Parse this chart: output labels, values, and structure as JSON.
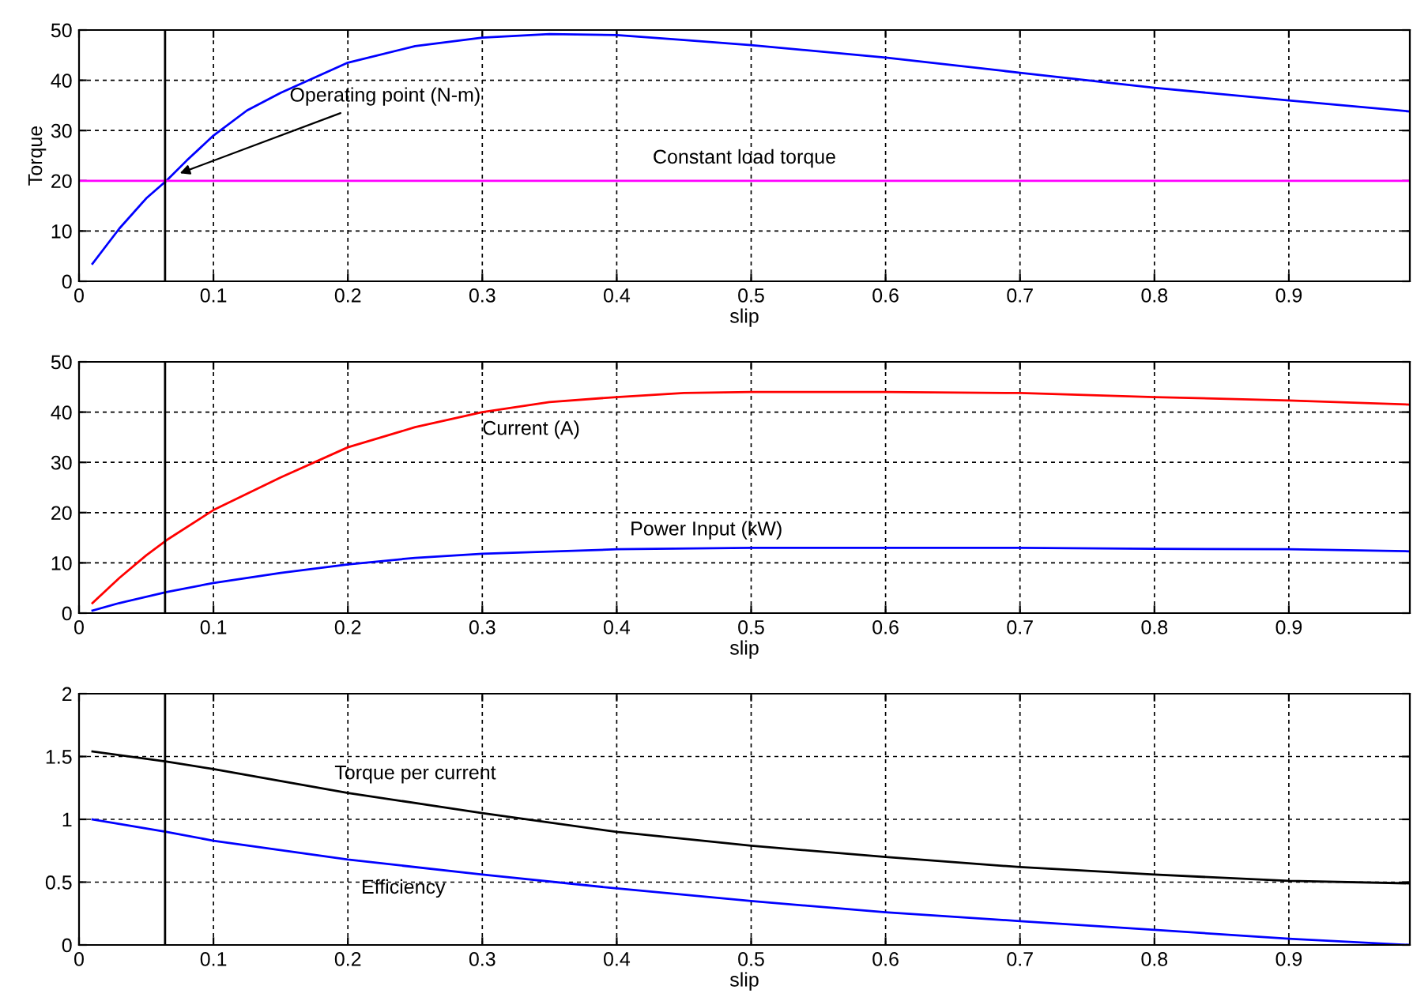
{
  "chart_data": [
    {
      "type": "line",
      "ylabel": "Torque",
      "xlabel": "slip",
      "xlim": [
        0,
        0.99
      ],
      "ylim": [
        0,
        50
      ],
      "xticks": [
        0,
        0.1,
        0.2,
        0.3,
        0.4,
        0.5,
        0.6,
        0.7,
        0.8,
        0.9
      ],
      "yticks": [
        0,
        10,
        20,
        30,
        40,
        50
      ],
      "grid": true,
      "line_style": "solid",
      "marker": "none",
      "series": [
        {
          "color": "#0000ff",
          "x": [
            0.01,
            0.02,
            0.03,
            0.05,
            0.065,
            0.08,
            0.1,
            0.125,
            0.15,
            0.2,
            0.25,
            0.3,
            0.35,
            0.4,
            0.45,
            0.5,
            0.6,
            0.7,
            0.8,
            0.9,
            0.99
          ],
          "values": [
            3.5,
            7,
            10.5,
            16.5,
            20,
            24,
            29,
            34,
            37.5,
            43.5,
            46.8,
            48.5,
            49.2,
            49,
            48,
            47,
            44.5,
            41.5,
            38.5,
            36,
            33.8
          ]
        }
      ],
      "ref_lines": [
        {
          "axis": "y",
          "value": 20,
          "label": "Constant load torque",
          "color": "#ff00ff"
        },
        {
          "axis": "x",
          "value": 0.064,
          "color": "#000000"
        }
      ],
      "annotations": [
        {
          "text": "Operating point (N-m)",
          "x": 0.075,
          "y": 21.5
        }
      ]
    },
    {
      "type": "line",
      "xlabel": "slip",
      "xlim": [
        0,
        0.99
      ],
      "ylim": [
        0,
        50
      ],
      "xticks": [
        0,
        0.1,
        0.2,
        0.3,
        0.4,
        0.5,
        0.6,
        0.7,
        0.8,
        0.9
      ],
      "yticks": [
        0,
        10,
        20,
        30,
        40,
        50
      ],
      "grid": true,
      "line_style": "solid",
      "marker": "none",
      "series": [
        {
          "color": "#ff0000",
          "x": [
            0.01,
            0.03,
            0.05,
            0.065,
            0.1,
            0.15,
            0.2,
            0.25,
            0.3,
            0.35,
            0.4,
            0.45,
            0.5,
            0.6,
            0.7,
            0.8,
            0.9,
            0.99
          ],
          "values": [
            2,
            7,
            11.5,
            14.5,
            20.5,
            27,
            33,
            37,
            40,
            42,
            43,
            43.8,
            44,
            44,
            43.8,
            43,
            42.3,
            41.5
          ]
        },
        {
          "color": "#0000ff",
          "x": [
            0.01,
            0.03,
            0.065,
            0.1,
            0.15,
            0.2,
            0.25,
            0.3,
            0.4,
            0.5,
            0.6,
            0.7,
            0.8,
            0.9,
            0.99
          ],
          "values": [
            0.5,
            2,
            4.2,
            6,
            8,
            9.7,
            11,
            11.8,
            12.7,
            13,
            13,
            13,
            12.8,
            12.7,
            12.3
          ]
        }
      ],
      "ref_lines": [
        {
          "axis": "x",
          "value": 0.064,
          "color": "#000000"
        }
      ],
      "annotations": [
        "Current (A)",
        "Power Input (kW)"
      ]
    },
    {
      "type": "line",
      "xlabel": "slip",
      "xlim": [
        0,
        0.99
      ],
      "ylim": [
        0,
        2
      ],
      "xticks": [
        0,
        0.1,
        0.2,
        0.3,
        0.4,
        0.5,
        0.6,
        0.7,
        0.8,
        0.9
      ],
      "yticks": [
        0,
        0.5,
        1,
        1.5,
        2
      ],
      "grid": true,
      "line_style": "solid",
      "marker": "none",
      "series": [
        {
          "color": "#000000",
          "x": [
            0.01,
            0.065,
            0.1,
            0.2,
            0.3,
            0.4,
            0.5,
            0.6,
            0.7,
            0.8,
            0.9,
            0.99
          ],
          "values": [
            1.54,
            1.46,
            1.4,
            1.21,
            1.05,
            0.9,
            0.79,
            0.7,
            0.62,
            0.56,
            0.51,
            0.49
          ]
        },
        {
          "color": "#0000ff",
          "x": [
            0.01,
            0.065,
            0.1,
            0.2,
            0.3,
            0.4,
            0.5,
            0.6,
            0.7,
            0.8,
            0.9,
            0.99
          ],
          "values": [
            1.0,
            0.9,
            0.83,
            0.68,
            0.56,
            0.45,
            0.35,
            0.26,
            0.19,
            0.12,
            0.05,
            0.0
          ]
        }
      ],
      "ref_lines": [
        {
          "axis": "x",
          "value": 0.064,
          "color": "#000000"
        }
      ],
      "annotations": [
        "Torque per current",
        "Efficiency"
      ]
    }
  ]
}
